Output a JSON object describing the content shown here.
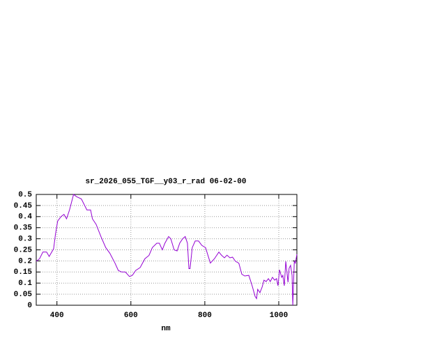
{
  "chart_data": {
    "type": "line",
    "title": "sr_2026_055_TGF__y03_r_rad 06-02-00",
    "x_label": "nm",
    "x": [
      344,
      353,
      362,
      372,
      379,
      391,
      396,
      402,
      411,
      419,
      426,
      434,
      445,
      453,
      466,
      475,
      481,
      491,
      496,
      506,
      519,
      532,
      543,
      557,
      566,
      575,
      585,
      596,
      604,
      613,
      625,
      638,
      649,
      658,
      670,
      677,
      685,
      692,
      702,
      708,
      717,
      725,
      732,
      740,
      747,
      753,
      757,
      760,
      766,
      774,
      783,
      792,
      802,
      815,
      826,
      838,
      845,
      853,
      860,
      868,
      875,
      883,
      892,
      900,
      908,
      919,
      928,
      936,
      940,
      943,
      949,
      955,
      960,
      966,
      972,
      977,
      983,
      989,
      994,
      998,
      1002,
      1008,
      1011,
      1015,
      1019,
      1025,
      1028,
      1032,
      1036,
      1038,
      1042,
      1045,
      1049
    ],
    "series": [
      {
        "color": "#9400d3",
        "values": [
          0.198,
          0.21,
          0.24,
          0.24,
          0.22,
          0.255,
          0.32,
          0.38,
          0.4,
          0.41,
          0.39,
          0.43,
          0.5,
          0.49,
          0.48,
          0.45,
          0.43,
          0.43,
          0.39,
          0.365,
          0.31,
          0.26,
          0.235,
          0.19,
          0.157,
          0.15,
          0.15,
          0.13,
          0.135,
          0.157,
          0.17,
          0.21,
          0.225,
          0.26,
          0.28,
          0.28,
          0.25,
          0.28,
          0.31,
          0.3,
          0.25,
          0.245,
          0.28,
          0.3,
          0.31,
          0.28,
          0.165,
          0.165,
          0.26,
          0.29,
          0.29,
          0.27,
          0.26,
          0.19,
          0.21,
          0.24,
          0.226,
          0.214,
          0.226,
          0.214,
          0.217,
          0.198,
          0.19,
          0.14,
          0.132,
          0.135,
          0.088,
          0.04,
          0.03,
          0.072,
          0.057,
          0.082,
          0.113,
          0.107,
          0.12,
          0.107,
          0.126,
          0.113,
          0.12,
          0.088,
          0.16,
          0.126,
          0.135,
          0.088,
          0.198,
          0.104,
          0.167,
          0.18,
          0.135,
          0,
          0.198,
          0.19,
          0.23
        ]
      }
    ],
    "xlim": [
      344,
      1049
    ],
    "xticks": [
      400,
      600,
      800,
      1000
    ],
    "ylim": [
      0,
      0.5
    ],
    "yticks": [
      0,
      0.05,
      0.1,
      0.15,
      0.2,
      0.25,
      0.3,
      0.35,
      0.4,
      0.45,
      0.5
    ],
    "grid": true
  }
}
